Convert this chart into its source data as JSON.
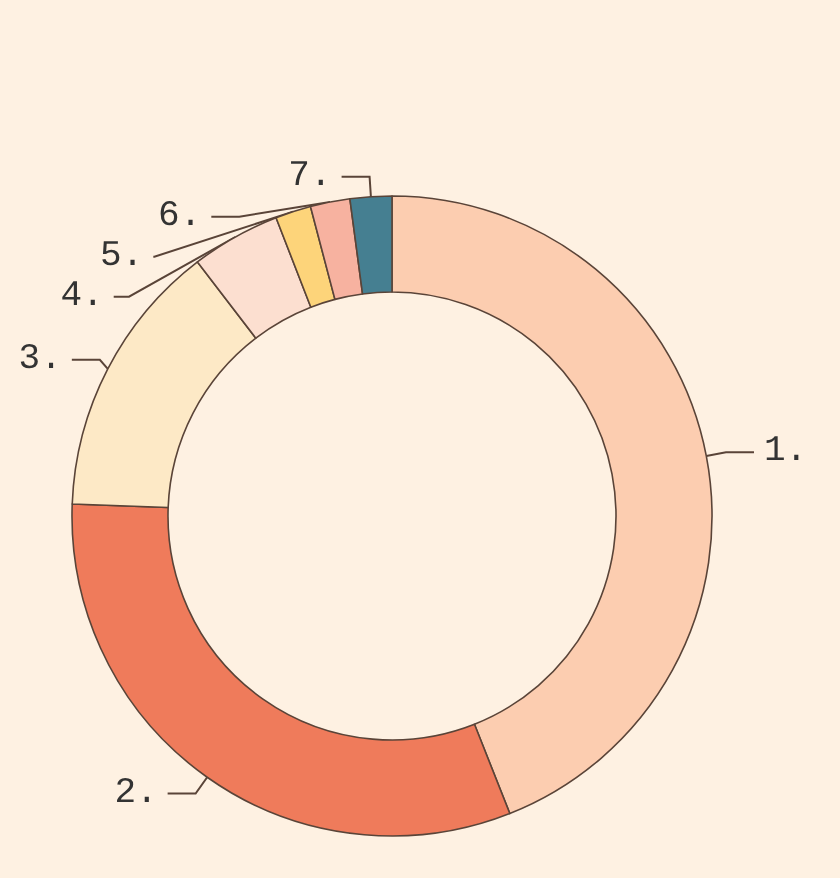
{
  "chart_data": {
    "type": "donut",
    "categories": [
      "1.",
      "2.",
      "3.",
      "4.",
      "5.",
      "6.",
      "7."
    ],
    "values": [
      44,
      31.6,
      14,
      4.5,
      1.8,
      2,
      2.1
    ],
    "colors": [
      "#fccdb0",
      "#ef7b5b",
      "#fde9c6",
      "#fcdfd0",
      "#fdd47a",
      "#f7b2a0",
      "#457f91"
    ]
  }
}
